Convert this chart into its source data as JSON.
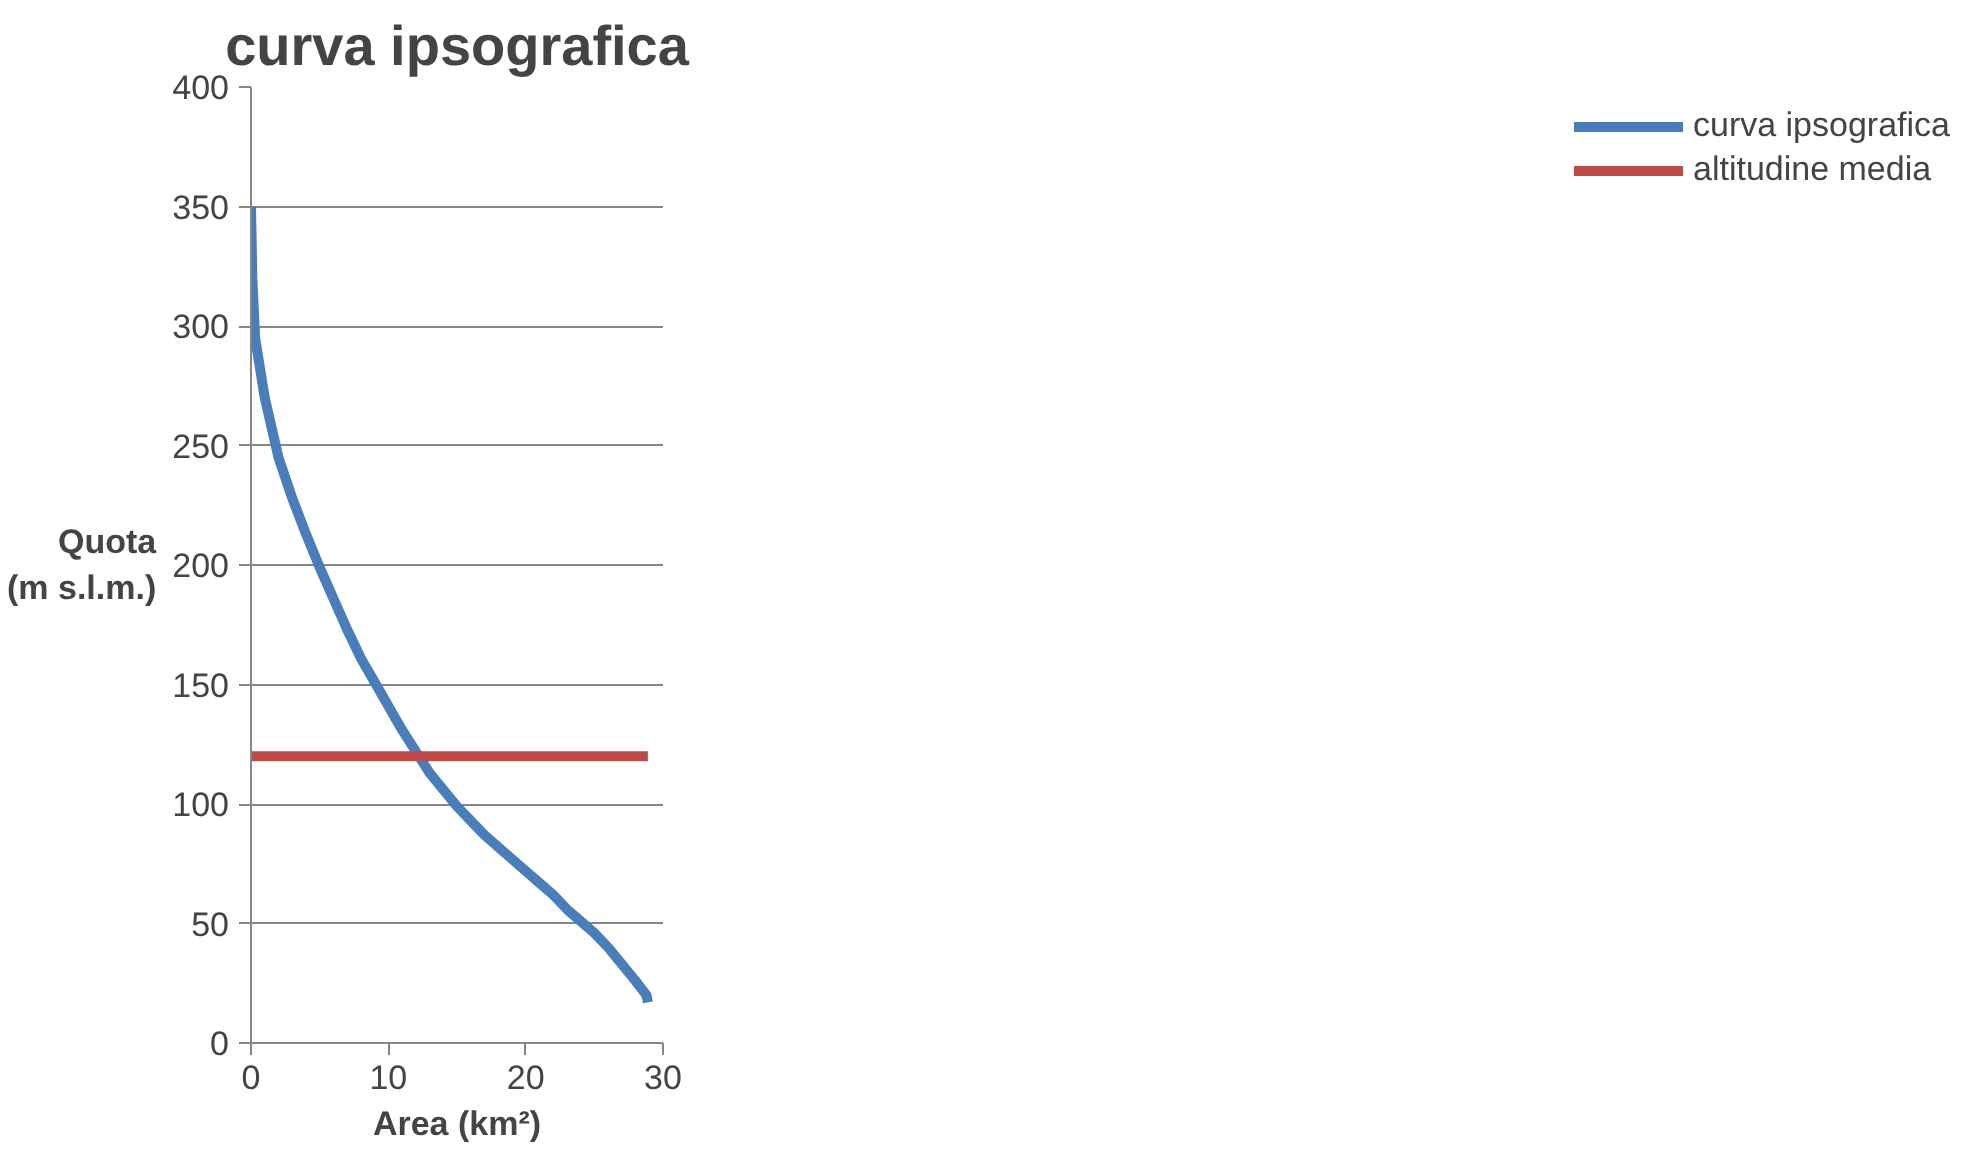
{
  "chart_data": {
    "type": "line",
    "title": "curva ipsografica",
    "xlabel": "Area (km²)",
    "ylabel": "Quota\n(m s.l.m.)",
    "xlim": [
      0,
      30
    ],
    "xticks": [
      0,
      10,
      20,
      30
    ],
    "ylim": [
      0,
      400
    ],
    "yticks": [
      0,
      50,
      100,
      150,
      200,
      250,
      300,
      350,
      400
    ],
    "grid": "y",
    "legend": "right",
    "line_style": "solid",
    "series": [
      {
        "name": "curva ipsografica",
        "color": "#4a7ebb",
        "x": [
          0,
          0.1,
          0.3,
          1,
          2,
          3,
          4,
          5,
          6,
          7,
          8,
          9,
          10,
          11,
          12,
          13,
          14,
          15,
          16,
          17,
          18,
          19,
          20,
          21,
          22,
          23,
          24,
          25,
          26,
          27,
          28,
          28.8,
          28.9
        ],
        "values": [
          350,
          320,
          295,
          270,
          245,
          228,
          213,
          199,
          186,
          173,
          161,
          151,
          141,
          131,
          122,
          113,
          106,
          99,
          93,
          87,
          82,
          77,
          72,
          67,
          62,
          56,
          51,
          46,
          40,
          33,
          26,
          20,
          17
        ]
      },
      {
        "name": "altitudine media",
        "color": "#be4b48",
        "x": [
          0,
          28.9
        ],
        "values": [
          120,
          120
        ]
      }
    ]
  }
}
